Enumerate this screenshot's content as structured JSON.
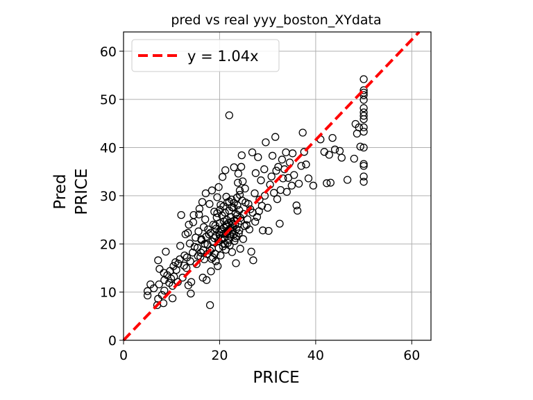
{
  "chart_data": {
    "type": "scatter",
    "title": "pred vs real yyy_boston_XYdata",
    "xlabel": "PRICE",
    "ylabel_lines": [
      "Pred",
      "PRICE"
    ],
    "xlim": [
      0,
      64
    ],
    "ylim": [
      0,
      64
    ],
    "xticks": [
      0,
      20,
      40,
      60
    ],
    "yticks": [
      0,
      10,
      20,
      30,
      40,
      50,
      60
    ],
    "grid": true,
    "legend": {
      "placement": "top-left",
      "label": "y = 1.04x"
    },
    "fit_line": {
      "slope": 1.04,
      "color": "#ff0000",
      "style": "dashed"
    },
    "marker": {
      "shape": "open-circle",
      "edge_color": "#000000"
    },
    "points": [
      [
        5.0,
        9.3
      ],
      [
        5.0,
        10.2
      ],
      [
        5.6,
        11.6
      ],
      [
        6.3,
        10.8
      ],
      [
        7.0,
        7.3
      ],
      [
        7.2,
        8.6
      ],
      [
        7.4,
        11.6
      ],
      [
        7.5,
        14.8
      ],
      [
        7.2,
        16.6
      ],
      [
        8.0,
        9.4
      ],
      [
        8.3,
        7.7
      ],
      [
        8.5,
        10.3
      ],
      [
        8.5,
        12.5
      ],
      [
        8.4,
        14.0
      ],
      [
        8.8,
        18.4
      ],
      [
        9.5,
        11.9
      ],
      [
        9.7,
        14.4
      ],
      [
        10.2,
        8.7
      ],
      [
        10.4,
        15.4
      ],
      [
        10.5,
        13.2
      ],
      [
        10.2,
        11.3
      ],
      [
        11.0,
        14.6
      ],
      [
        11.3,
        12.1
      ],
      [
        11.7,
        16.8
      ],
      [
        11.8,
        19.6
      ],
      [
        12.0,
        26.0
      ],
      [
        12.3,
        13.0
      ],
      [
        12.7,
        17.6
      ],
      [
        13.1,
        15.0
      ],
      [
        13.4,
        22.3
      ],
      [
        13.8,
        20.1
      ],
      [
        13.9,
        16.4
      ],
      [
        13.5,
        11.4
      ],
      [
        14.0,
        9.7
      ],
      [
        14.1,
        12.1
      ],
      [
        14.4,
        18.2
      ],
      [
        14.5,
        24.5
      ],
      [
        15.0,
        21.3
      ],
      [
        15.2,
        15.8
      ],
      [
        15.4,
        19.2
      ],
      [
        15.6,
        22.6
      ],
      [
        15.7,
        26.1
      ],
      [
        16.0,
        17.3
      ],
      [
        16.2,
        20.8
      ],
      [
        16.5,
        13.0
      ],
      [
        16.6,
        18.7
      ],
      [
        16.7,
        23.5
      ],
      [
        17.0,
        25.1
      ],
      [
        17.3,
        12.5
      ],
      [
        17.5,
        19.9
      ],
      [
        17.8,
        22.0
      ],
      [
        17.9,
        28.3
      ],
      [
        18.0,
        7.3
      ],
      [
        18.2,
        14.3
      ],
      [
        18.3,
        16.9
      ],
      [
        18.5,
        20.5
      ],
      [
        18.7,
        24.0
      ],
      [
        18.9,
        26.7
      ],
      [
        19.0,
        18.0
      ],
      [
        19.2,
        21.6
      ],
      [
        19.3,
        23.2
      ],
      [
        19.4,
        25.5
      ],
      [
        19.5,
        29.7
      ],
      [
        19.6,
        15.4
      ],
      [
        19.8,
        19.1
      ],
      [
        19.9,
        22.4
      ],
      [
        20.0,
        24.3
      ],
      [
        20.1,
        27.1
      ],
      [
        20.2,
        17.6
      ],
      [
        20.3,
        20.9
      ],
      [
        20.4,
        23.0
      ],
      [
        20.5,
        25.9
      ],
      [
        20.6,
        33.9
      ],
      [
        20.7,
        19.5
      ],
      [
        20.8,
        22.1
      ],
      [
        20.9,
        24.7
      ],
      [
        21.0,
        21.3
      ],
      [
        21.1,
        26.5
      ],
      [
        21.2,
        35.3
      ],
      [
        21.3,
        18.8
      ],
      [
        21.4,
        23.6
      ],
      [
        21.5,
        25.0
      ],
      [
        21.6,
        28.6
      ],
      [
        21.7,
        20.2
      ],
      [
        21.8,
        22.8
      ],
      [
        21.9,
        24.4
      ],
      [
        22.0,
        46.7
      ],
      [
        22.0,
        26.9
      ],
      [
        22.1,
        19.7
      ],
      [
        22.2,
        21.9
      ],
      [
        22.3,
        23.3
      ],
      [
        22.4,
        25.6
      ],
      [
        22.5,
        29.2
      ],
      [
        22.6,
        18.3
      ],
      [
        22.7,
        22.5
      ],
      [
        22.8,
        24.1
      ],
      [
        22.9,
        27.5
      ],
      [
        23.0,
        35.9
      ],
      [
        23.1,
        20.6
      ],
      [
        23.2,
        23.9
      ],
      [
        23.3,
        26.3
      ],
      [
        23.4,
        16.0
      ],
      [
        23.5,
        21.6
      ],
      [
        23.6,
        25.2
      ],
      [
        23.7,
        28.0
      ],
      [
        23.8,
        32.7
      ],
      [
        23.9,
        34.6
      ],
      [
        24.0,
        22.2
      ],
      [
        24.1,
        27.0
      ],
      [
        24.2,
        30.2
      ],
      [
        24.3,
        19.0
      ],
      [
        24.4,
        24.8
      ],
      [
        24.5,
        36.0
      ],
      [
        24.6,
        38.4
      ],
      [
        24.7,
        29.0
      ],
      [
        25.0,
        26.2
      ],
      [
        25.3,
        31.5
      ],
      [
        25.6,
        23.9
      ],
      [
        26.0,
        28.3
      ],
      [
        26.4,
        27.2
      ],
      [
        26.6,
        18.4
      ],
      [
        26.8,
        39.0
      ],
      [
        27.0,
        16.6
      ],
      [
        27.3,
        30.5
      ],
      [
        27.5,
        34.7
      ],
      [
        27.8,
        25.6
      ],
      [
        28.0,
        38.0
      ],
      [
        28.3,
        29.2
      ],
      [
        28.6,
        33.2
      ],
      [
        29.0,
        22.8
      ],
      [
        29.3,
        35.5
      ],
      [
        29.6,
        41.1
      ],
      [
        30.0,
        27.5
      ],
      [
        30.2,
        22.7
      ],
      [
        30.5,
        32.3
      ],
      [
        30.8,
        34.0
      ],
      [
        31.0,
        38.3
      ],
      [
        31.3,
        30.6
      ],
      [
        31.6,
        42.2
      ],
      [
        31.8,
        35.2
      ],
      [
        32.0,
        29.3
      ],
      [
        32.2,
        36.0
      ],
      [
        32.5,
        24.2
      ],
      [
        32.7,
        31.2
      ],
      [
        33.0,
        37.5
      ],
      [
        33.2,
        33.6
      ],
      [
        33.5,
        35.5
      ],
      [
        33.8,
        39.0
      ],
      [
        34.0,
        30.8
      ],
      [
        34.3,
        33.7
      ],
      [
        34.6,
        36.9
      ],
      [
        35.0,
        32.1
      ],
      [
        35.2,
        38.8
      ],
      [
        35.5,
        34.3
      ],
      [
        36.0,
        28.0
      ],
      [
        36.2,
        26.9
      ],
      [
        36.5,
        32.5
      ],
      [
        37.0,
        36.2
      ],
      [
        37.3,
        43.1
      ],
      [
        37.6,
        39.1
      ],
      [
        38.0,
        36.5
      ],
      [
        38.5,
        33.6
      ],
      [
        39.5,
        32.1
      ],
      [
        41.0,
        41.7
      ],
      [
        41.8,
        39.1
      ],
      [
        42.3,
        32.6
      ],
      [
        42.8,
        38.5
      ],
      [
        43.5,
        42.0
      ],
      [
        43.1,
        32.7
      ],
      [
        44.0,
        39.6
      ],
      [
        45.0,
        39.3
      ],
      [
        45.4,
        37.9
      ],
      [
        46.6,
        33.3
      ],
      [
        48.0,
        37.7
      ],
      [
        48.3,
        44.9
      ],
      [
        48.6,
        42.9
      ],
      [
        49.0,
        44.2
      ],
      [
        49.3,
        40.2
      ],
      [
        50.0,
        54.2
      ],
      [
        50.0,
        51.4
      ],
      [
        50.0,
        50.9
      ],
      [
        50.0,
        49.9
      ],
      [
        50.0,
        48.2
      ],
      [
        50.0,
        47.3
      ],
      [
        50.0,
        46.6
      ],
      [
        50.0,
        44.2
      ],
      [
        50.0,
        43.3
      ],
      [
        50.0,
        40.0
      ],
      [
        50.0,
        36.6
      ],
      [
        50.0,
        36.2
      ],
      [
        50.0,
        34.0
      ],
      [
        50.0,
        32.9
      ],
      [
        50.0,
        51.9
      ],
      [
        50.0,
        45.9
      ],
      [
        16.2,
        21.0
      ],
      [
        16.9,
        20.0
      ],
      [
        17.2,
        21.5
      ],
      [
        17.6,
        23.0
      ],
      [
        18.1,
        22.3
      ],
      [
        18.4,
        19.0
      ],
      [
        18.9,
        21.2
      ],
      [
        19.1,
        23.8
      ],
      [
        19.7,
        20.6
      ],
      [
        20.0,
        21.8
      ],
      [
        20.3,
        22.6
      ],
      [
        20.6,
        21.1
      ],
      [
        20.9,
        23.4
      ],
      [
        21.1,
        20.0
      ],
      [
        21.3,
        22.2
      ],
      [
        21.5,
        24.0
      ],
      [
        21.7,
        22.5
      ],
      [
        21.9,
        20.8
      ],
      [
        22.1,
        23.1
      ],
      [
        22.3,
        21.5
      ],
      [
        22.5,
        24.6
      ],
      [
        22.7,
        23.5
      ],
      [
        22.9,
        22.0
      ],
      [
        23.1,
        24.9
      ],
      [
        23.3,
        21.2
      ],
      [
        23.5,
        23.1
      ],
      [
        23.7,
        26.0
      ],
      [
        23.9,
        24.2
      ],
      [
        24.1,
        22.8
      ],
      [
        24.3,
        25.4
      ],
      [
        19.5,
        26.4
      ],
      [
        20.2,
        28.1
      ],
      [
        20.8,
        27.8
      ],
      [
        21.4,
        29.8
      ],
      [
        22.0,
        28.8
      ],
      [
        22.6,
        27.6
      ],
      [
        23.0,
        28.5
      ],
      [
        23.6,
        29.6
      ],
      [
        24.2,
        31.1
      ],
      [
        24.8,
        33.0
      ],
      [
        25.4,
        28.6
      ],
      [
        24.9,
        21.0
      ],
      [
        25.2,
        23.7
      ],
      [
        25.8,
        25.1
      ],
      [
        26.2,
        23.0
      ],
      [
        26.9,
        26.5
      ],
      [
        27.4,
        24.6
      ],
      [
        28.2,
        26.8
      ],
      [
        28.8,
        27.9
      ],
      [
        29.4,
        30.0
      ],
      [
        14.8,
        19.4
      ],
      [
        15.5,
        17.5
      ],
      [
        16.1,
        18.2
      ],
      [
        16.8,
        16.8
      ],
      [
        17.4,
        17.9
      ],
      [
        18.0,
        18.6
      ],
      [
        18.6,
        17.2
      ],
      [
        19.2,
        16.4
      ],
      [
        13.2,
        17.2
      ],
      [
        12.6,
        15.5
      ],
      [
        11.4,
        15.9
      ],
      [
        10.8,
        16.2
      ],
      [
        9.9,
        12.8
      ],
      [
        9.1,
        13.5
      ],
      [
        12.9,
        22.0
      ],
      [
        13.6,
        24.0
      ],
      [
        14.6,
        26.0
      ],
      [
        15.8,
        27.3
      ],
      [
        16.4,
        28.7
      ],
      [
        17.1,
        30.5
      ],
      [
        18.4,
        31.1
      ],
      [
        19.8,
        31.8
      ]
    ]
  }
}
